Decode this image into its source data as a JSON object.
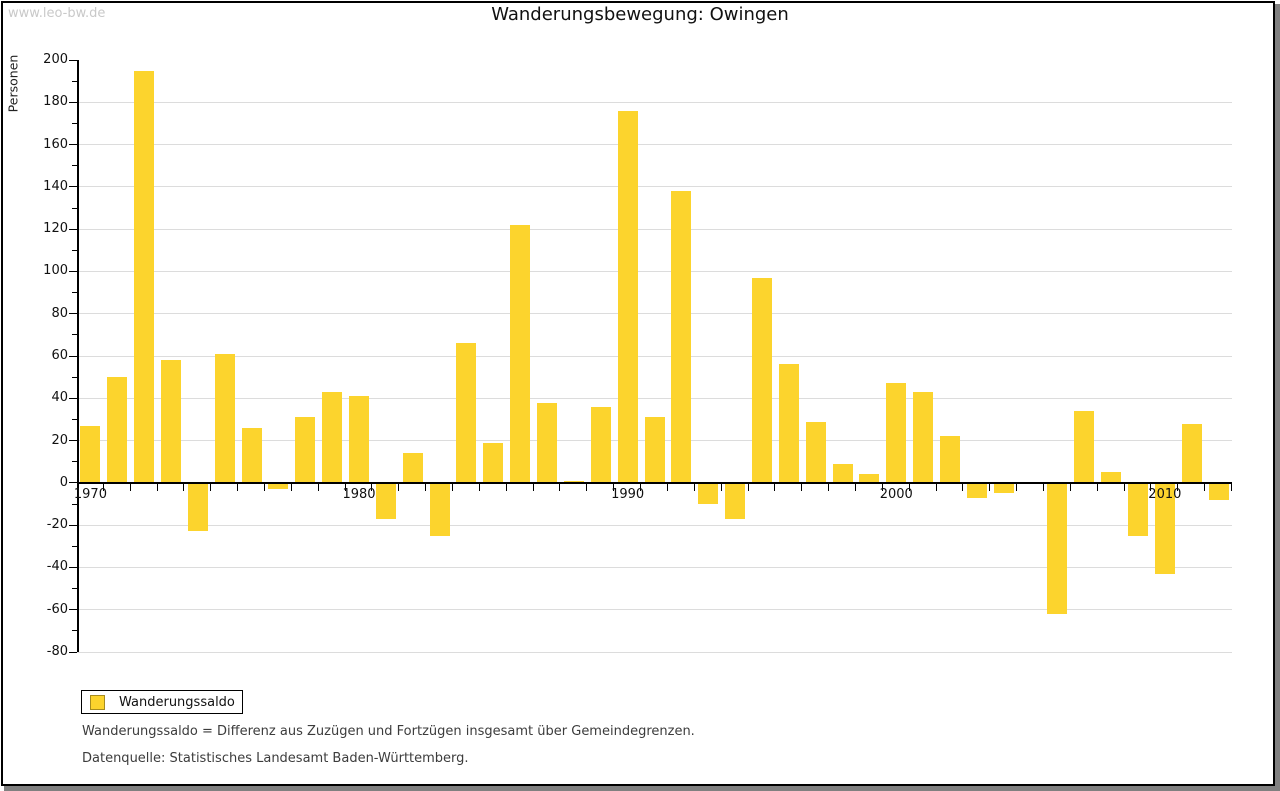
{
  "watermark": "www.leo-bw.de",
  "title": "Wanderungsbewegung: Owingen",
  "y_axis_label": "Personen",
  "legend": {
    "label": "Wanderungssaldo"
  },
  "footnotes": {
    "definition": "Wanderungssaldo = Differenz aus Zuzügen und Fortzügen insgesamt über Gemeindegrenzen.",
    "source": "Datenquelle: Statistisches Landesamt Baden-Württemberg."
  },
  "colors": {
    "bar": "#fcd42d",
    "grid": "#dcdcdc",
    "axis": "#000000",
    "watermark": "#c9c9c9",
    "frame_shadow": "#808080",
    "legend_swatch_border": "#a68c21"
  },
  "chart_data": {
    "type": "bar",
    "title": "Wanderungsbewegung: Owingen",
    "ylabel": "Personen",
    "series_name": "Wanderungssaldo",
    "categories": [
      1970,
      1971,
      1972,
      1973,
      1974,
      1975,
      1976,
      1977,
      1978,
      1979,
      1980,
      1981,
      1982,
      1983,
      1984,
      1985,
      1986,
      1987,
      1988,
      1989,
      1990,
      1991,
      1992,
      1993,
      1994,
      1995,
      1996,
      1997,
      1998,
      1999,
      2000,
      2001,
      2002,
      2003,
      2004,
      2005,
      2006,
      2007,
      2008,
      2009,
      2010,
      2011,
      2012
    ],
    "values": [
      27,
      50,
      195,
      58,
      -23,
      61,
      26,
      -3,
      31,
      43,
      41,
      -17,
      14,
      -25,
      66,
      19,
      122,
      38,
      1,
      36,
      176,
      31,
      138,
      -10,
      -17,
      97,
      56,
      29,
      9,
      4,
      47,
      43,
      22,
      -7,
      -5,
      0,
      -62,
      34,
      5,
      -25,
      -43,
      28,
      -8
    ],
    "ylim": [
      -80,
      200
    ],
    "ytick_step": 20,
    "ytick_minor_step": 10,
    "xtick_labels": [
      1970,
      1980,
      1990,
      2000,
      2010
    ],
    "grid": true,
    "legend_position": "bottom-left"
  }
}
